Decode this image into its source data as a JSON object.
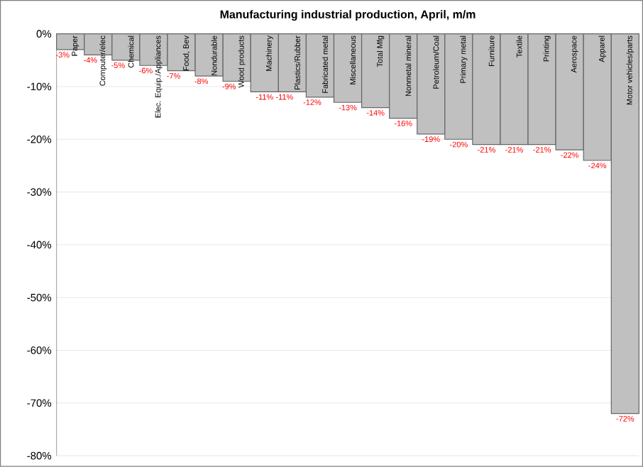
{
  "chart_data": {
    "type": "bar",
    "title": "Manufacturing industrial production, April, m/m",
    "categories": [
      "Paper",
      "Computer/elec",
      "Chemical",
      "Elec. Equip./Appliances",
      "Food, Bev",
      "Nondurable",
      "Wood products",
      "Machinery",
      "Plastics/Rubber",
      "Fabricated metal",
      "Miscellaneous",
      "Total Mfg",
      "Nonmetal mineral",
      "Petroleum/Coal",
      "Primary metal",
      "Furniture",
      "Textile",
      "Printing",
      "Aerospace",
      "Apparel",
      "Motor vehicles/parts"
    ],
    "values": [
      -3,
      -4,
      -5,
      -6,
      -7,
      -8,
      -9,
      -11,
      -11,
      -12,
      -13,
      -14,
      -16,
      -19,
      -20,
      -21,
      -21,
      -21,
      -22,
      -24,
      -72
    ],
    "value_labels": [
      "-3%",
      "-4%",
      "-5%",
      "-6%",
      "-7%",
      "-8%",
      "-9%",
      "-11%",
      "-11%",
      "-12%",
      "-13%",
      "-14%",
      "-16%",
      "-19%",
      "-20%",
      "-21%",
      "-21%",
      "-21%",
      "-22%",
      "-24%",
      "-72%"
    ],
    "color": "#c0c0c0",
    "ylim": [
      -80,
      0
    ],
    "yticks": [
      {
        "value": 0,
        "label": "0%"
      },
      {
        "value": -10,
        "label": "-10%"
      },
      {
        "value": -20,
        "label": "-20%"
      },
      {
        "value": -30,
        "label": "-30%"
      },
      {
        "value": -40,
        "label": "-40%"
      },
      {
        "value": -50,
        "label": "-50%"
      },
      {
        "value": -60,
        "label": "-60%"
      },
      {
        "value": -70,
        "label": "-70%"
      },
      {
        "value": -80,
        "label": "-80%"
      }
    ],
    "grid": "y"
  }
}
